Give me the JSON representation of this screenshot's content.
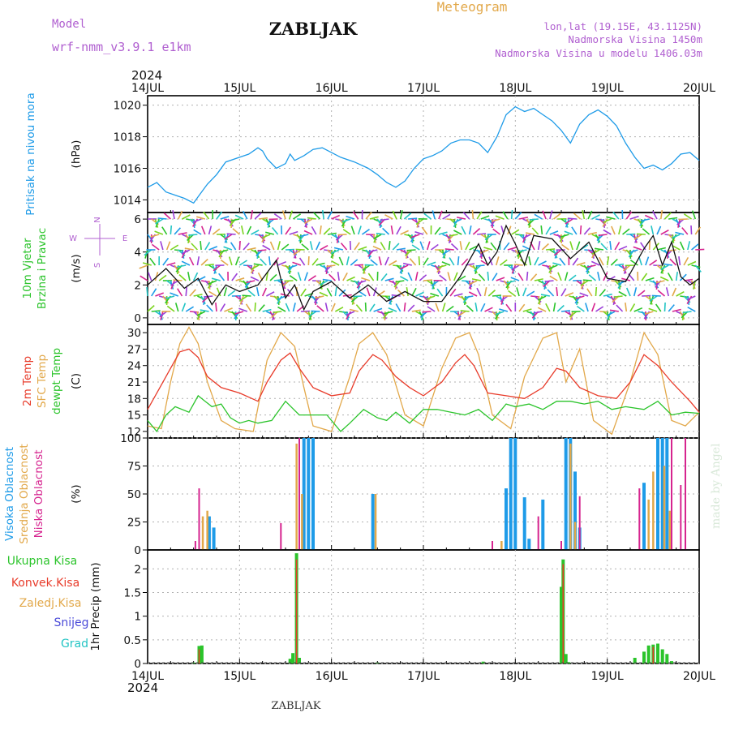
{
  "header": {
    "model_label": "Model",
    "model_name": "wrf-nmm_v3.9.1  e1km",
    "station": "ZABLJAK",
    "product": "Meteogram",
    "coords": "lon,lat (19.15E, 43.1125N)",
    "elevation": "Nadmorska Visina 1450m",
    "model_elevation": "Nadmorska Visina u modelu 1406.03m",
    "year_top": "2024",
    "year_bottom": "2024",
    "footer_station": "ZABLJAK",
    "credit": "made by Angel"
  },
  "x_axis": {
    "ticks": [
      "14JUL",
      "15JUL",
      "16JUL",
      "17JUL",
      "18JUL",
      "19JUL",
      "20JUL"
    ]
  },
  "colors": {
    "pressure": "#1e9be8",
    "temp2m": "#e83b2a",
    "sfc_temp": "#e2a84a",
    "dewpt": "#2bc42b",
    "high_cloud": "#1e9be8",
    "mid_cloud": "#e2a84a",
    "low_cloud": "#d6248f",
    "total_precip": "#2bc42b",
    "conv_precip": "#e83b2a",
    "snow": "#4a4ad8",
    "grid": "#b0b0b0"
  },
  "panels": {
    "pressure": {
      "labels": [
        "Pritisak na nivou mora"
      ],
      "unit": "(hPa)",
      "yticks": [
        "1014",
        "1016",
        "1018",
        "1020"
      ]
    },
    "wind": {
      "labels": [
        "10m Vjetar",
        "Brzina i Pravac"
      ],
      "unit": "(m/s)",
      "yticks": [
        "0",
        "2",
        "4",
        "6"
      ],
      "compass": {
        "n": "N",
        "s": "S",
        "e": "E",
        "w": "W"
      }
    },
    "temp": {
      "labels": [
        "2m Temp",
        "SFC Temp",
        "dewpt Temp"
      ],
      "unit": "(C)",
      "yticks": [
        "12",
        "15",
        "18",
        "21",
        "24",
        "27",
        "30"
      ]
    },
    "cloud": {
      "labels": [
        "Visoka Oblacnost",
        "Srednja Oblacnost",
        "Niska Oblacnost"
      ],
      "unit": "(%)",
      "yticks": [
        "0",
        "25",
        "50",
        "75",
        "100"
      ]
    },
    "precip": {
      "labels": [
        "Ukupna Kisa",
        "Konvek.Kisa",
        "Zaledj.Kisa",
        "Snijeg",
        "Grad"
      ],
      "unit": "1hr Precip (mm)",
      "yticks": [
        "0",
        "0.5",
        "1",
        "1.5",
        "2"
      ]
    }
  },
  "chart_data": [
    {
      "type": "line",
      "title": "Pritisak na nivou mora",
      "ylabel": "(hPa)",
      "ylim": [
        1013.2,
        1020.6
      ],
      "x_unit": "days since 14JUL",
      "series": [
        {
          "name": "Pritisak na nivou mora",
          "x": [
            0,
            0.1,
            0.2,
            0.3,
            0.4,
            0.5,
            0.55,
            0.65,
            0.75,
            0.85,
            1.0,
            1.1,
            1.2,
            1.25,
            1.3,
            1.4,
            1.5,
            1.55,
            1.6,
            1.7,
            1.8,
            1.9,
            2.0,
            2.1,
            2.25,
            2.4,
            2.5,
            2.6,
            2.7,
            2.8,
            2.9,
            3.0,
            3.1,
            3.2,
            3.3,
            3.4,
            3.5,
            3.6,
            3.7,
            3.8,
            3.9,
            4.0,
            4.1,
            4.2,
            4.3,
            4.4,
            4.5,
            4.6,
            4.7,
            4.8,
            4.9,
            5.0,
            5.1,
            5.2,
            5.3,
            5.4,
            5.5,
            5.6,
            5.7,
            5.8,
            5.9,
            6.0
          ],
          "y": [
            1014.8,
            1015.1,
            1014.5,
            1014.3,
            1014.1,
            1013.8,
            1014.2,
            1015.0,
            1015.6,
            1016.4,
            1016.7,
            1016.9,
            1017.3,
            1017.1,
            1016.6,
            1016.0,
            1016.3,
            1016.9,
            1016.5,
            1016.8,
            1017.2,
            1017.3,
            1017.0,
            1016.7,
            1016.4,
            1016.0,
            1015.6,
            1015.1,
            1014.8,
            1015.2,
            1016.0,
            1016.6,
            1016.8,
            1017.1,
            1017.6,
            1017.8,
            1017.8,
            1017.6,
            1017.0,
            1018.0,
            1019.4,
            1019.9,
            1019.6,
            1019.8,
            1019.4,
            1019.0,
            1018.4,
            1017.6,
            1018.8,
            1019.4,
            1019.7,
            1019.3,
            1018.7,
            1017.6,
            1016.7,
            1016.0,
            1016.2,
            1015.9,
            1016.3,
            1016.9,
            1017.0,
            1016.5
          ]
        }
      ]
    },
    {
      "type": "line",
      "title": "10m Vjetar Brzina i Pravac",
      "ylabel": "(m/s)",
      "ylim": [
        -0.4,
        6.4
      ],
      "x_unit": "days since 14JUL",
      "series": [
        {
          "name": "10m Vjetar Brzina i Pravac",
          "x": [
            0,
            0.2,
            0.4,
            0.55,
            0.7,
            0.85,
            1.0,
            1.2,
            1.4,
            1.5,
            1.6,
            1.7,
            1.8,
            2.0,
            2.2,
            2.4,
            2.6,
            2.8,
            3.0,
            3.2,
            3.4,
            3.5,
            3.6,
            3.7,
            3.8,
            3.9,
            4.0,
            4.1,
            4.2,
            4.4,
            4.6,
            4.8,
            5.0,
            5.2,
            5.4,
            5.5,
            5.6,
            5.7,
            5.8,
            5.9,
            6.0
          ],
          "y": [
            2.0,
            3.0,
            1.8,
            2.4,
            0.8,
            2.0,
            1.6,
            2.0,
            3.5,
            1.2,
            2.0,
            0.5,
            1.6,
            2.2,
            1.2,
            2.0,
            1.0,
            1.6,
            1.0,
            1.0,
            2.5,
            3.5,
            4.5,
            3.2,
            4.0,
            5.6,
            4.5,
            3.2,
            5.0,
            4.8,
            3.6,
            4.6,
            2.4,
            2.2,
            4.2,
            5.0,
            3.2,
            4.6,
            2.5,
            2.0,
            2.4
          ]
        }
      ]
    },
    {
      "type": "line",
      "title": "2m Temp / SFC Temp / dewpt Temp",
      "ylabel": "(C)",
      "ylim": [
        10.8,
        31.5
      ],
      "x_unit": "days since 14JUL",
      "series": [
        {
          "name": "2m Temp",
          "x": [
            0,
            0.15,
            0.25,
            0.35,
            0.45,
            0.55,
            0.65,
            0.8,
            1.0,
            1.2,
            1.3,
            1.45,
            1.55,
            1.65,
            1.8,
            2.0,
            2.2,
            2.3,
            2.45,
            2.55,
            2.7,
            2.85,
            3.0,
            3.2,
            3.35,
            3.45,
            3.55,
            3.7,
            3.9,
            4.1,
            4.3,
            4.45,
            4.55,
            4.7,
            4.9,
            5.1,
            5.25,
            5.4,
            5.55,
            5.7,
            5.9,
            6.0
          ],
          "y": [
            16,
            20.5,
            23.5,
            26.5,
            27.0,
            25.5,
            22.0,
            20.0,
            19.0,
            17.5,
            21.0,
            25.0,
            26.3,
            23.5,
            20.0,
            18.5,
            19.0,
            23.0,
            26.0,
            25.0,
            22.0,
            20.0,
            18.5,
            21.0,
            24.5,
            26.0,
            24.0,
            19.0,
            18.5,
            18.0,
            20.0,
            23.5,
            23.0,
            20.0,
            18.5,
            18.0,
            21.0,
            26.0,
            24.0,
            21.0,
            17.5,
            15.5
          ]
        },
        {
          "name": "SFC Temp",
          "x": [
            0,
            0.15,
            0.25,
            0.35,
            0.45,
            0.55,
            0.65,
            0.8,
            0.95,
            1.15,
            1.3,
            1.45,
            1.6,
            1.7,
            1.8,
            2.0,
            2.2,
            2.3,
            2.45,
            2.6,
            2.8,
            3.0,
            3.2,
            3.35,
            3.5,
            3.6,
            3.75,
            3.95,
            4.1,
            4.3,
            4.45,
            4.55,
            4.7,
            4.85,
            5.05,
            5.25,
            5.4,
            5.55,
            5.7,
            5.85,
            6.0
          ],
          "y": [
            13,
            12.5,
            21.0,
            28.0,
            31.0,
            28.0,
            21.0,
            14.0,
            12.5,
            12.0,
            25.0,
            30.0,
            27.5,
            20.0,
            13.0,
            12.0,
            22.0,
            28.0,
            30.0,
            26.0,
            15.0,
            13.0,
            23.5,
            29.0,
            30.0,
            26.0,
            15.0,
            12.5,
            22.0,
            29.0,
            30.0,
            21.0,
            27.0,
            14.0,
            11.5,
            21.0,
            30.0,
            26.0,
            14.0,
            13.0,
            15.5
          ]
        },
        {
          "name": "dewpt Temp",
          "x": [
            0,
            0.1,
            0.2,
            0.3,
            0.45,
            0.55,
            0.7,
            0.8,
            0.9,
            1.0,
            1.1,
            1.2,
            1.35,
            1.5,
            1.65,
            1.8,
            1.95,
            2.1,
            2.2,
            2.35,
            2.5,
            2.6,
            2.7,
            2.85,
            3.0,
            3.15,
            3.3,
            3.45,
            3.6,
            3.75,
            3.9,
            4.0,
            4.15,
            4.3,
            4.45,
            4.6,
            4.75,
            4.9,
            5.05,
            5.2,
            5.4,
            5.55,
            5.7,
            5.85,
            6.0
          ],
          "y": [
            14,
            12.0,
            15.0,
            16.5,
            15.5,
            18.5,
            16.5,
            17.0,
            14.5,
            13.5,
            14.0,
            13.5,
            14.0,
            17.5,
            15.0,
            15.0,
            15.0,
            12.0,
            13.5,
            16.0,
            14.5,
            14.0,
            15.5,
            13.5,
            16.0,
            16.0,
            15.5,
            15.0,
            16.0,
            14.0,
            17.0,
            16.5,
            17.0,
            16.0,
            17.5,
            17.5,
            17.0,
            17.5,
            16.0,
            16.5,
            16.0,
            17.5,
            15.0,
            15.5,
            15.3
          ]
        }
      ]
    },
    {
      "type": "bar",
      "title": "Visoka Oblacnost / Srednja Oblacnost / Niska Oblacnost",
      "ylabel": "(%)",
      "ylim": [
        0,
        100
      ],
      "x_unit": "days since 14JUL",
      "series": [
        {
          "name": "Visoka Oblacnost",
          "x": [
            0.67,
            0.72,
            1.7,
            1.75,
            1.8,
            2.45,
            3.9,
            3.95,
            4.0,
            4.1,
            4.15,
            4.3,
            4.55,
            4.6,
            4.65,
            4.7,
            5.4,
            5.55,
            5.6,
            5.65
          ],
          "y": [
            30,
            20,
            100,
            100,
            100,
            50,
            55,
            100,
            100,
            47,
            10,
            45,
            100,
            100,
            70,
            20,
            60,
            100,
            100,
            100
          ]
        },
        {
          "name": "Srednja Oblacnost",
          "x": [
            0.6,
            0.65,
            1.62,
            1.68,
            2.48,
            3.85,
            4.6,
            4.65,
            5.45,
            5.5,
            5.62,
            5.68
          ],
          "y": [
            30,
            35,
            95,
            50,
            50,
            8,
            95,
            25,
            45,
            70,
            75,
            35
          ]
        },
        {
          "name": "Niska Oblacnost",
          "x": [
            0.52,
            0.56,
            1.45,
            1.65,
            3.75,
            4.25,
            4.5,
            4.7,
            5.35,
            5.7,
            5.8,
            5.85
          ],
          "y": [
            8,
            55,
            24,
            100,
            8,
            30,
            8,
            48,
            55,
            100,
            58,
            100
          ]
        }
      ]
    },
    {
      "type": "bar",
      "title": "1hr Precip",
      "ylabel": "1hr Precip (mm)",
      "ylim": [
        0,
        2.4
      ],
      "x_unit": "days since 14JUL",
      "series": [
        {
          "name": "Ukupna Kisa",
          "x": [
            0.5,
            0.56,
            0.59,
            1.55,
            1.58,
            1.62,
            1.65,
            2.5,
            3.65,
            4.5,
            4.52,
            4.55,
            4.58,
            5.3,
            5.4,
            5.45,
            5.5,
            5.55,
            5.6,
            5.65,
            5.7
          ],
          "y": [
            0.02,
            0.37,
            0.38,
            0.1,
            0.22,
            2.33,
            0.12,
            0.02,
            0.04,
            1.62,
            2.2,
            0.2,
            0.03,
            0.12,
            0.25,
            0.38,
            0.4,
            0.42,
            0.3,
            0.2,
            0.05
          ]
        },
        {
          "name": "Konvek.Kisa",
          "x": [
            0.56,
            1.62,
            4.52,
            5.5
          ],
          "y": [
            0.3,
            2.2,
            2.1,
            0.35
          ]
        }
      ]
    }
  ]
}
